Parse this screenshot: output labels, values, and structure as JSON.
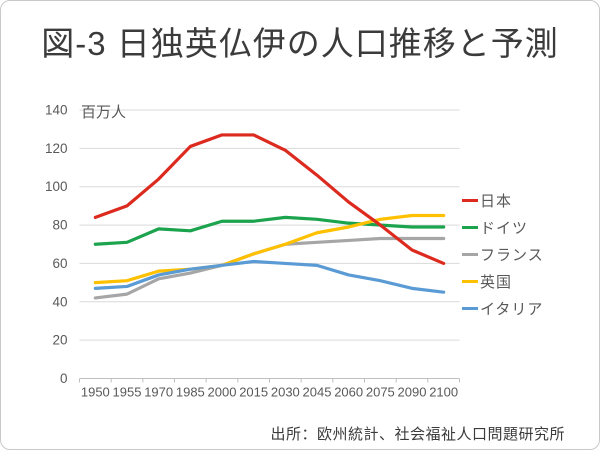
{
  "title": "図-3 日独英仏伊の人口推移と予測",
  "source_note": "出所：欧州統計、社会福祉人口問題研究所",
  "chart_data": {
    "type": "line",
    "title": "図-3 日独英仏伊の人口推移と予測",
    "unit_label": "百万人",
    "xlabel": "",
    "ylabel": "百万人",
    "ylim": [
      0,
      140
    ],
    "ytick_step": 20,
    "ytick_labels": [
      "0",
      "20",
      "40",
      "60",
      "80",
      "100",
      "120",
      "140"
    ],
    "grid": true,
    "legend_position": "right",
    "categories": [
      "1950",
      "1955",
      "1970",
      "1985",
      "2000",
      "2015",
      "2030",
      "2045",
      "2060",
      "2075",
      "2090",
      "2100"
    ],
    "series": [
      {
        "name": "日本",
        "color": "#dc2a1e",
        "values": [
          84,
          90,
          104,
          121,
          127,
          127,
          119,
          106,
          92,
          80,
          67,
          60
        ]
      },
      {
        "name": "ドイツ",
        "color": "#1ca34e",
        "values": [
          70,
          71,
          78,
          77,
          82,
          82,
          84,
          83,
          81,
          80,
          79,
          79
        ]
      },
      {
        "name": "フランス",
        "color": "#a6a6a6",
        "values": [
          42,
          44,
          52,
          55,
          59,
          65,
          70,
          71,
          72,
          73,
          73,
          73
        ]
      },
      {
        "name": "英国",
        "color": "#ffc000",
        "values": [
          50,
          51,
          56,
          57,
          59,
          65,
          70,
          76,
          79,
          83,
          85,
          85
        ]
      },
      {
        "name": "イタリア",
        "color": "#5b9bd5",
        "values": [
          47,
          48,
          54,
          57,
          59,
          61,
          60,
          59,
          54,
          51,
          47,
          45
        ]
      }
    ]
  },
  "colors": {
    "title_text": "#3b3b3b",
    "axis_text": "#595959",
    "gridline": "#d9d9d9",
    "axis_line": "#bfbfbf",
    "legend_text": "#595959",
    "source_text": "#3b3b3b"
  }
}
